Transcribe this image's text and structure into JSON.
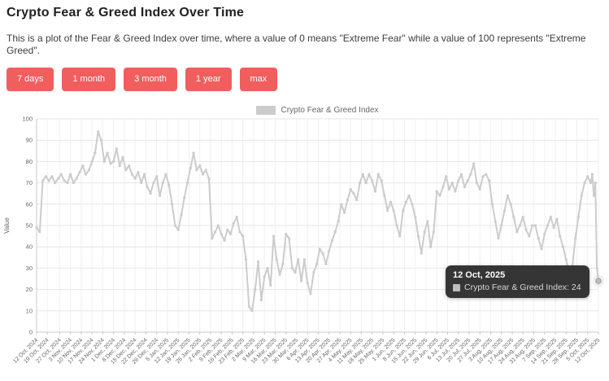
{
  "header": {
    "title": "Crypto Fear & Greed Index Over Time",
    "description": "This is a plot of the Fear & Greed Index over time, where a value of 0 means \"Extreme Fear\" while a value of 100 represents \"Extreme Greed\"."
  },
  "range_buttons": [
    {
      "label": "7 days"
    },
    {
      "label": "1 month"
    },
    {
      "label": "3 month"
    },
    {
      "label": "1 year"
    },
    {
      "label": "max"
    }
  ],
  "colors": {
    "button": "#f15e5e",
    "series": "#cccccc",
    "grid_h": "#e6e6e6",
    "grid_v": "#f0f0f0",
    "axis_line": "#c9c9c9",
    "tick_text": "#666666",
    "tooltip_bg": "#2d2d2d"
  },
  "chart_data": {
    "type": "line",
    "title": "",
    "legend": "Crypto Fear & Greed Index",
    "ylabel": "Value",
    "xlabel": "",
    "ylim": [
      0,
      100
    ],
    "y_ticks": [
      0,
      10,
      20,
      30,
      40,
      50,
      60,
      70,
      80,
      90,
      100
    ],
    "x_range_days": [
      0,
      365
    ],
    "x_tick_days": [
      0,
      7,
      15,
      22,
      29,
      36,
      43,
      50,
      57,
      64,
      71,
      78,
      85,
      92,
      99,
      106,
      113,
      120,
      127,
      134,
      141,
      148,
      155,
      162,
      169,
      176,
      183,
      190,
      197,
      204,
      211,
      218,
      225,
      232,
      239,
      246,
      253,
      260,
      267,
      274,
      281,
      288,
      295,
      302,
      309,
      316,
      323,
      330,
      337,
      344,
      351,
      358,
      365
    ],
    "x_tick_labels": [
      "12 Oct, 2024",
      "19 Oct, 2024",
      "27 Oct, 2024",
      "3 Nov, 2024",
      "10 Nov, 2024",
      "17 Nov, 2024",
      "24 Nov, 2024",
      "1 Dec, 2024",
      "8 Dec, 2024",
      "15 Dec, 2024",
      "22 Dec, 2024",
      "29 Dec, 2024",
      "5 Jan, 2025",
      "12 Jan, 2025",
      "19 Jan, 2025",
      "26 Jan, 2025",
      "2 Feb, 2025",
      "9 Feb, 2025",
      "16 Feb, 2025",
      "23 Feb, 2025",
      "2 Mar, 2025",
      "9 Mar, 2025",
      "16 Mar, 2025",
      "23 Mar, 2025",
      "30 Mar, 2025",
      "6 Apr, 2025",
      "13 Apr, 2025",
      "20 Apr, 2025",
      "27 Apr, 2025",
      "4 May, 2025",
      "11 May, 2025",
      "18 May, 2025",
      "25 May, 2025",
      "1 Jun, 2025",
      "8 Jun, 2025",
      "15 Jun, 2025",
      "22 Jun, 2025",
      "29 Jun, 2025",
      "6 Jul, 2025",
      "13 Jul, 2025",
      "20 Jul, 2025",
      "27 Jul, 2025",
      "3 Aug, 2025",
      "10 Aug, 2025",
      "17 Aug, 2025",
      "24 Aug, 2025",
      "31 Aug, 2025",
      "7 Sep, 2025",
      "14 Sep, 2025",
      "21 Sep, 2025",
      "28 Sep, 2025",
      "5 Oct, 2025",
      "12 Oct, 2025"
    ],
    "series": [
      {
        "name": "Crypto Fear & Greed Index",
        "color": "#cccccc",
        "points": [
          [
            0,
            49
          ],
          [
            2,
            47
          ],
          [
            4,
            71
          ],
          [
            6,
            73
          ],
          [
            8,
            71
          ],
          [
            10,
            73
          ],
          [
            12,
            70
          ],
          [
            14,
            72
          ],
          [
            16,
            74
          ],
          [
            18,
            71
          ],
          [
            20,
            70
          ],
          [
            22,
            74
          ],
          [
            24,
            70
          ],
          [
            26,
            72
          ],
          [
            28,
            75
          ],
          [
            30,
            78
          ],
          [
            32,
            74
          ],
          [
            34,
            76
          ],
          [
            36,
            80
          ],
          [
            38,
            84
          ],
          [
            40,
            94
          ],
          [
            42,
            90
          ],
          [
            44,
            80
          ],
          [
            46,
            84
          ],
          [
            48,
            79
          ],
          [
            50,
            80
          ],
          [
            52,
            86
          ],
          [
            54,
            78
          ],
          [
            56,
            82
          ],
          [
            58,
            76
          ],
          [
            60,
            78
          ],
          [
            62,
            74
          ],
          [
            64,
            72
          ],
          [
            66,
            75
          ],
          [
            68,
            70
          ],
          [
            70,
            74
          ],
          [
            72,
            68
          ],
          [
            74,
            65
          ],
          [
            76,
            70
          ],
          [
            78,
            73
          ],
          [
            80,
            64
          ],
          [
            82,
            70
          ],
          [
            84,
            74
          ],
          [
            86,
            69
          ],
          [
            88,
            60
          ],
          [
            90,
            50
          ],
          [
            92,
            48
          ],
          [
            94,
            55
          ],
          [
            96,
            63
          ],
          [
            98,
            70
          ],
          [
            100,
            77
          ],
          [
            102,
            84
          ],
          [
            104,
            76
          ],
          [
            106,
            78
          ],
          [
            108,
            74
          ],
          [
            110,
            76
          ],
          [
            112,
            72
          ],
          [
            114,
            44
          ],
          [
            116,
            47
          ],
          [
            118,
            50
          ],
          [
            120,
            46
          ],
          [
            122,
            43
          ],
          [
            124,
            48
          ],
          [
            126,
            46
          ],
          [
            128,
            51
          ],
          [
            130,
            54
          ],
          [
            132,
            47
          ],
          [
            134,
            45
          ],
          [
            136,
            34
          ],
          [
            138,
            12
          ],
          [
            140,
            10
          ],
          [
            142,
            20
          ],
          [
            144,
            33
          ],
          [
            146,
            15
          ],
          [
            148,
            26
          ],
          [
            150,
            30
          ],
          [
            152,
            22
          ],
          [
            154,
            45
          ],
          [
            156,
            34
          ],
          [
            158,
            27
          ],
          [
            160,
            32
          ],
          [
            162,
            46
          ],
          [
            164,
            44
          ],
          [
            166,
            30
          ],
          [
            168,
            28
          ],
          [
            170,
            34
          ],
          [
            172,
            24
          ],
          [
            174,
            34
          ],
          [
            176,
            23
          ],
          [
            178,
            18
          ],
          [
            180,
            28
          ],
          [
            182,
            32
          ],
          [
            184,
            39
          ],
          [
            186,
            37
          ],
          [
            188,
            32
          ],
          [
            190,
            38
          ],
          [
            192,
            43
          ],
          [
            194,
            47
          ],
          [
            196,
            52
          ],
          [
            198,
            60
          ],
          [
            200,
            56
          ],
          [
            202,
            62
          ],
          [
            204,
            67
          ],
          [
            206,
            65
          ],
          [
            208,
            62
          ],
          [
            210,
            70
          ],
          [
            212,
            74
          ],
          [
            214,
            70
          ],
          [
            216,
            74
          ],
          [
            218,
            71
          ],
          [
            220,
            66
          ],
          [
            222,
            74
          ],
          [
            224,
            71
          ],
          [
            226,
            64
          ],
          [
            228,
            57
          ],
          [
            230,
            61
          ],
          [
            232,
            57
          ],
          [
            234,
            50
          ],
          [
            236,
            45
          ],
          [
            238,
            57
          ],
          [
            240,
            61
          ],
          [
            242,
            64
          ],
          [
            244,
            60
          ],
          [
            246,
            54
          ],
          [
            248,
            45
          ],
          [
            250,
            37
          ],
          [
            252,
            47
          ],
          [
            254,
            52
          ],
          [
            256,
            40
          ],
          [
            258,
            47
          ],
          [
            260,
            66
          ],
          [
            262,
            64
          ],
          [
            264,
            68
          ],
          [
            266,
            73
          ],
          [
            268,
            67
          ],
          [
            270,
            70
          ],
          [
            272,
            66
          ],
          [
            274,
            71
          ],
          [
            276,
            74
          ],
          [
            278,
            68
          ],
          [
            280,
            71
          ],
          [
            282,
            74
          ],
          [
            284,
            79
          ],
          [
            286,
            70
          ],
          [
            288,
            67
          ],
          [
            290,
            73
          ],
          [
            292,
            74
          ],
          [
            294,
            71
          ],
          [
            296,
            60
          ],
          [
            298,
            52
          ],
          [
            300,
            44
          ],
          [
            302,
            50
          ],
          [
            304,
            57
          ],
          [
            306,
            64
          ],
          [
            308,
            60
          ],
          [
            310,
            54
          ],
          [
            312,
            47
          ],
          [
            314,
            50
          ],
          [
            316,
            54
          ],
          [
            318,
            48
          ],
          [
            320,
            45
          ],
          [
            322,
            50
          ],
          [
            324,
            50
          ],
          [
            326,
            44
          ],
          [
            328,
            39
          ],
          [
            330,
            46
          ],
          [
            332,
            50
          ],
          [
            334,
            54
          ],
          [
            336,
            49
          ],
          [
            338,
            53
          ],
          [
            340,
            45
          ],
          [
            342,
            40
          ],
          [
            344,
            34
          ],
          [
            346,
            28
          ],
          [
            348,
            30
          ],
          [
            350,
            44
          ],
          [
            352,
            54
          ],
          [
            354,
            64
          ],
          [
            356,
            70
          ],
          [
            358,
            73
          ],
          [
            360,
            70
          ],
          [
            361,
            74
          ],
          [
            362,
            64
          ],
          [
            363,
            70
          ],
          [
            364,
            30
          ],
          [
            365,
            24
          ]
        ]
      }
    ],
    "tooltip": {
      "date": "12 Oct, 2025",
      "text": "Crypto Fear & Greed Index: 24",
      "value": 24
    },
    "last_point": {
      "day": 365,
      "value": 24
    }
  }
}
